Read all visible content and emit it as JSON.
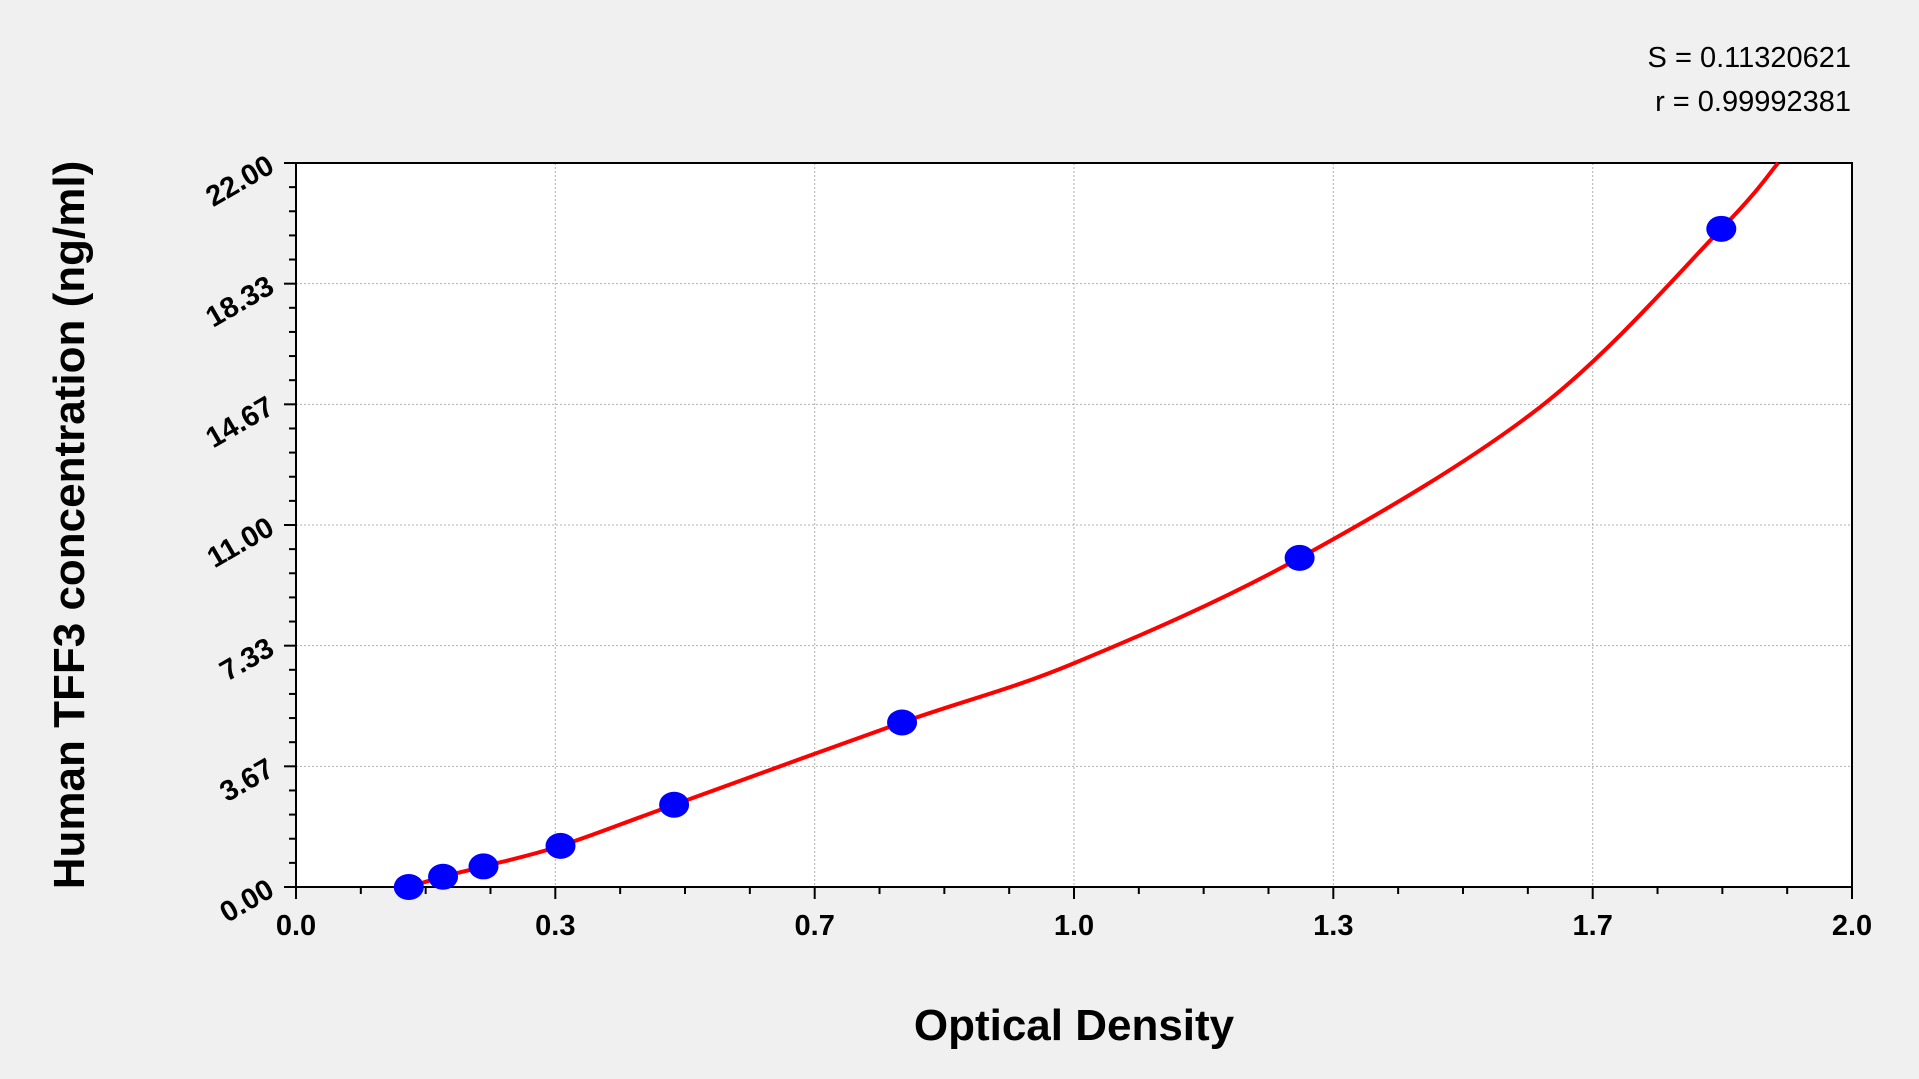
{
  "chart_data": {
    "type": "scatter",
    "title": "",
    "xlabel": "Optical Density",
    "ylabel": "Human TFF3 concentration (ng/ml)",
    "xlim": [
      0,
      2.0
    ],
    "ylim": [
      0,
      22
    ],
    "x_ticks": [
      0,
      0.3333,
      0.6667,
      1.0,
      1.3333,
      1.6667,
      2.0
    ],
    "x_tick_labels": [
      "0.0",
      "0.3",
      "0.7",
      "1.0",
      "1.3",
      "1.7",
      "2.0"
    ],
    "y_ticks": [
      0,
      3.667,
      7.333,
      11,
      14.667,
      18.333,
      22
    ],
    "y_tick_labels": [
      "0.00",
      "3.67",
      "7.33",
      "11.00",
      "14.67",
      "18.33",
      "22.00"
    ],
    "grid": true,
    "series": [
      {
        "type": "scatter",
        "color": "#0000ff",
        "x": [
          0.145,
          0.189,
          0.241,
          0.34,
          0.486,
          0.779,
          1.29,
          1.832
        ],
        "y": [
          0,
          0.313,
          0.625,
          1.25,
          2.5,
          5,
          10,
          20
        ]
      },
      {
        "type": "line",
        "color": "#ff0000",
        "x": [
          0.145,
          0.189,
          0.241,
          0.34,
          0.486,
          0.779,
          1.0,
          1.29,
          1.6,
          1.832,
          1.905
        ],
        "y": [
          0,
          0.313,
          0.625,
          1.25,
          2.5,
          5,
          6.8,
          10,
          14.6,
          20,
          22
        ]
      }
    ],
    "annotations": [
      "S = 0.11320621",
      "r = 0.99992381"
    ]
  }
}
